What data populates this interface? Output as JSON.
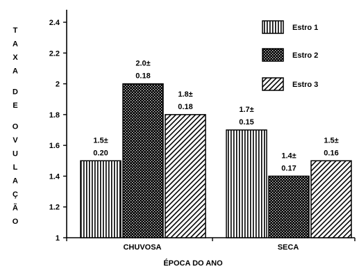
{
  "chart_data": {
    "type": "bar",
    "title": "",
    "xlabel": "ÉPOCA DO ANO",
    "ylabel": "TAXA DE OVULAÇÃO",
    "ylim": [
      1,
      2.4
    ],
    "yticks": [
      "1",
      "1.2",
      "1.4",
      "1.6",
      "1.8",
      "2",
      "2.2",
      "2.4"
    ],
    "categories": [
      "CHUVOSA",
      "SECA"
    ],
    "legend_position": "top-right",
    "grid": false,
    "series": [
      {
        "name": "Estro 1",
        "pattern": "vertical-lines",
        "values": [
          1.5,
          1.7
        ],
        "labels": [
          [
            "1.5±",
            "0.20"
          ],
          [
            "1.7±",
            "0.15"
          ]
        ]
      },
      {
        "name": "Estro 2",
        "pattern": "crosshatch",
        "values": [
          2.0,
          1.4
        ],
        "labels": [
          [
            "2.0±",
            "0.18"
          ],
          [
            "1.4±",
            "0.17"
          ]
        ]
      },
      {
        "name": "Estro 3",
        "pattern": "diagonal-lines",
        "values": [
          1.8,
          1.5
        ],
        "labels": [
          [
            "1.8±",
            "0.18"
          ],
          [
            "1.5±",
            "0.16"
          ]
        ]
      }
    ]
  },
  "colors": {
    "ink": "#000000",
    "background": "#ffffff"
  }
}
